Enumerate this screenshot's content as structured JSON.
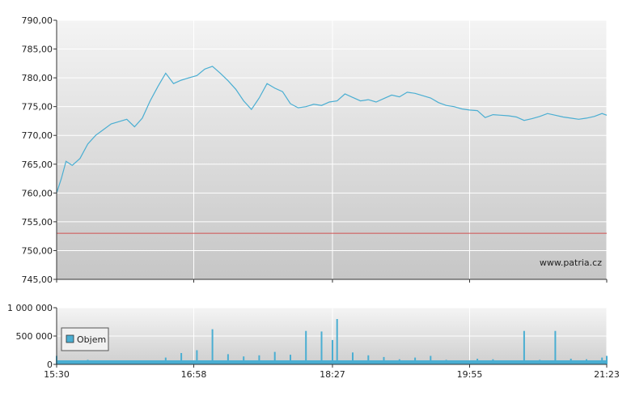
{
  "chart_data": [
    {
      "type": "line",
      "ylim": [
        745,
        790
      ],
      "y_ticks": [
        "790,00",
        "785,00",
        "780,00",
        "775,00",
        "770,00",
        "765,00",
        "760,00",
        "755,00",
        "750,00",
        "745,00"
      ],
      "x_ticks": [
        "15:30",
        "16:58",
        "18:27",
        "19:55",
        "21:23"
      ],
      "grid": true,
      "watermark": "www.patria.cz",
      "reference_line": 753,
      "colors": {
        "line": "#4aaed2",
        "reference": "#d05050",
        "grid": "#ffffff"
      },
      "series": [
        {
          "x": [
            "15:30",
            "15:33",
            "15:36",
            "15:40",
            "15:45",
            "15:50",
            "15:55",
            "16:00",
            "16:05",
            "16:10",
            "16:15",
            "16:20",
            "16:25",
            "16:30",
            "16:35",
            "16:40",
            "16:45",
            "16:50",
            "16:55",
            "17:00",
            "17:05",
            "17:10",
            "17:15",
            "17:20",
            "17:25",
            "17:30",
            "17:35",
            "17:40",
            "17:45",
            "17:50",
            "17:55",
            "18:00",
            "18:05",
            "18:10",
            "18:15",
            "18:20",
            "18:25",
            "18:30",
            "18:35",
            "18:40",
            "18:45",
            "18:50",
            "18:55",
            "19:00",
            "19:05",
            "19:10",
            "19:15",
            "19:20",
            "19:25",
            "19:30",
            "19:35",
            "19:40",
            "19:45",
            "19:50",
            "19:55",
            "20:00",
            "20:05",
            "20:10",
            "20:15",
            "20:20",
            "20:25",
            "20:30",
            "20:35",
            "20:40",
            "20:45",
            "20:50",
            "20:55",
            "21:00",
            "21:05",
            "21:10",
            "21:15",
            "21:20",
            "21:23"
          ],
          "values": [
            760.0,
            762.5,
            765.5,
            764.8,
            766.0,
            768.5,
            770.0,
            771.0,
            772.0,
            772.4,
            772.8,
            771.5,
            773.0,
            776.0,
            778.5,
            780.8,
            779.0,
            779.6,
            780.0,
            780.4,
            781.5,
            782.0,
            780.8,
            779.5,
            778.0,
            776.0,
            774.5,
            776.5,
            779.0,
            778.2,
            777.6,
            775.5,
            774.8,
            775.0,
            775.4,
            775.2,
            775.8,
            776.0,
            777.2,
            776.6,
            776.0,
            776.2,
            775.8,
            776.4,
            777.0,
            776.7,
            777.5,
            777.3,
            776.9,
            776.5,
            775.7,
            775.2,
            775.0,
            774.6,
            774.4,
            774.3,
            773.1,
            773.6,
            773.5,
            773.4,
            773.2,
            772.6,
            772.9,
            773.3,
            773.8,
            773.5,
            773.2,
            773.0,
            772.8,
            773.0,
            773.3,
            773.8,
            773.5
          ]
        }
      ]
    },
    {
      "type": "bar",
      "name": "Objem",
      "ylim": [
        0,
        1000000
      ],
      "y_ticks": [
        "1 000 000",
        "500 000",
        "0"
      ],
      "x_ticks": [
        "15:30",
        "16:58",
        "18:27",
        "19:55",
        "21:23"
      ],
      "legend": "top-left",
      "colors": {
        "bar": "#4aaed2"
      },
      "x": [
        "15:30",
        "15:40",
        "15:50",
        "16:00",
        "16:10",
        "16:20",
        "16:30",
        "16:40",
        "16:50",
        "17:00",
        "17:10",
        "17:20",
        "17:30",
        "17:40",
        "17:50",
        "18:00",
        "18:10",
        "18:20",
        "18:27",
        "18:30",
        "18:40",
        "18:50",
        "19:00",
        "19:10",
        "19:20",
        "19:30",
        "19:40",
        "19:50",
        "20:00",
        "20:10",
        "20:20",
        "20:30",
        "20:40",
        "20:50",
        "21:00",
        "21:10",
        "21:20",
        "21:23"
      ],
      "values": [
        150000,
        60000,
        80000,
        40000,
        30000,
        20000,
        70000,
        120000,
        200000,
        250000,
        620000,
        180000,
        140000,
        160000,
        220000,
        170000,
        590000,
        580000,
        430000,
        800000,
        210000,
        160000,
        130000,
        90000,
        120000,
        150000,
        80000,
        70000,
        100000,
        90000,
        60000,
        590000,
        80000,
        590000,
        100000,
        90000,
        120000,
        150000
      ]
    }
  ]
}
